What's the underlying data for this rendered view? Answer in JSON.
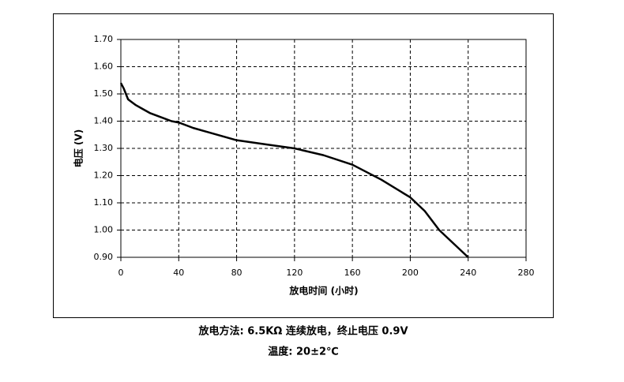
{
  "chart_data": {
    "type": "line",
    "xlabel": "放电时间 (小时)",
    "ylabel": "电压 (V)",
    "annotations": [
      "放电方法: 6.5KΩ 连续放电，终止电压 0.9V",
      "温度: 20±2℃"
    ],
    "x": [
      0,
      2,
      5,
      10,
      15,
      20,
      30,
      35,
      40,
      50,
      60,
      80,
      100,
      120,
      140,
      160,
      180,
      200,
      210,
      220,
      230,
      240
    ],
    "values": [
      1.54,
      1.52,
      1.48,
      1.46,
      1.445,
      1.43,
      1.41,
      1.4,
      1.395,
      1.375,
      1.36,
      1.33,
      1.315,
      1.3,
      1.275,
      1.24,
      1.185,
      1.12,
      1.07,
      1.0,
      0.95,
      0.9
    ],
    "color": "#000000",
    "xlim": [
      0,
      280
    ],
    "xticks": [
      0,
      40,
      80,
      120,
      160,
      200,
      240,
      280
    ],
    "ylim": [
      0.9,
      1.7
    ],
    "yticks": [
      {
        "value": 0.9,
        "label": "0.90"
      },
      {
        "value": 1.0,
        "label": "1.00"
      },
      {
        "value": 1.1,
        "label": "1.10"
      },
      {
        "value": 1.2,
        "label": "1.20"
      },
      {
        "value": 1.3,
        "label": "1.30"
      },
      {
        "value": 1.4,
        "label": "1.40"
      },
      {
        "value": 1.5,
        "label": "1.50"
      },
      {
        "value": 1.6,
        "label": "1.60"
      },
      {
        "value": 1.7,
        "label": "1.70"
      }
    ],
    "grid": true
  }
}
